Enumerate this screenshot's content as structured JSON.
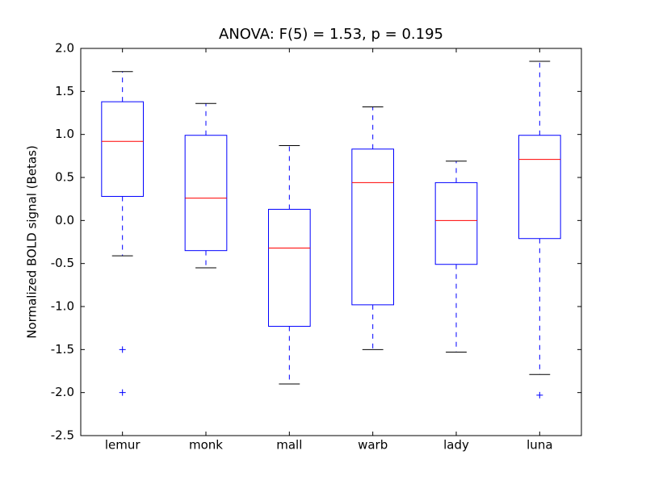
{
  "chart_data": {
    "type": "box",
    "title": "ANOVA: F(5) = 1.53, p = 0.195",
    "y_label": "Normalized BOLD signal (Betas)",
    "categories": [
      "lemur",
      "monk",
      "mall",
      "warb",
      "lady",
      "luna"
    ],
    "boxes": [
      {
        "whislo": -0.41,
        "q1": 0.28,
        "med": 0.92,
        "q3": 1.38,
        "whishi": 1.73,
        "fliers": [
          -1.5,
          -2.0
        ]
      },
      {
        "whislo": -0.55,
        "q1": -0.35,
        "med": 0.26,
        "q3": 0.99,
        "whishi": 1.36,
        "fliers": []
      },
      {
        "whislo": -1.9,
        "q1": -1.23,
        "med": -0.32,
        "q3": 0.13,
        "whishi": 0.87,
        "fliers": []
      },
      {
        "whislo": -1.5,
        "q1": -0.98,
        "med": 0.44,
        "q3": 0.83,
        "whishi": 1.32,
        "fliers": []
      },
      {
        "whislo": -1.53,
        "q1": -0.51,
        "med": 0.0,
        "q3": 0.44,
        "whishi": 0.69,
        "fliers": []
      },
      {
        "whislo": -1.79,
        "q1": -0.21,
        "med": 0.71,
        "q3": 0.99,
        "whishi": 1.85,
        "fliers": [
          -2.03
        ]
      }
    ],
    "box_color": "#0000ff",
    "median_color": "#ff0000",
    "cap_color": "#000000",
    "flier_color": "#0000ff",
    "ylim": [
      -2.5,
      2.0
    ],
    "yticks": [
      {
        "value": -2.5,
        "label": "-2.5"
      },
      {
        "value": -2,
        "label": "-2.0"
      },
      {
        "value": -1.5,
        "label": "-1.5"
      },
      {
        "value": -1,
        "label": "-1.0"
      },
      {
        "value": -0.5,
        "label": "-0.5"
      },
      {
        "value": 0,
        "label": "0.0"
      },
      {
        "value": 0.5,
        "label": "0.5"
      },
      {
        "value": 1,
        "label": "1.0"
      },
      {
        "value": 1.5,
        "label": "1.5"
      },
      {
        "value": 2,
        "label": "2.0"
      }
    ],
    "grid": false
  }
}
